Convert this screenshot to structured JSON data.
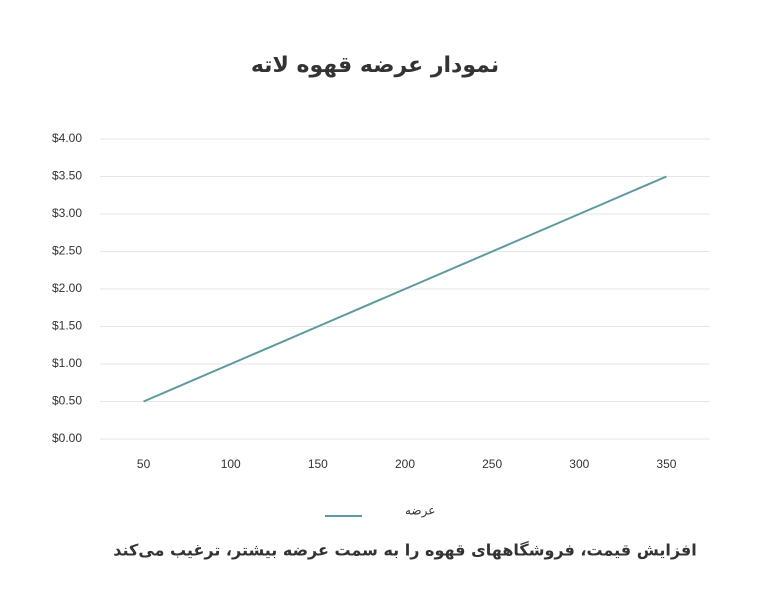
{
  "chart_data": {
    "type": "line",
    "title": "نمودار عرضه قهوه لاته",
    "categories": [
      "50",
      "100",
      "150",
      "200",
      "250",
      "300",
      "350"
    ],
    "series": [
      {
        "name": "عرضه",
        "color": "#5b9aa0",
        "values": [
          0.5,
          1,
          1.5,
          2,
          2.5,
          3,
          3.5
        ]
      }
    ],
    "ylim": [
      0,
      4
    ],
    "yticks": [
      {
        "value": 0,
        "label": "$0.00"
      },
      {
        "value": 0.5,
        "label": "$0.50"
      },
      {
        "value": 1,
        "label": "$1.00"
      },
      {
        "value": 1.5,
        "label": "$1.50"
      },
      {
        "value": 2,
        "label": "$2.00"
      },
      {
        "value": 2.5,
        "label": "$2.50"
      },
      {
        "value": 3,
        "label": "$3.00"
      },
      {
        "value": 3.5,
        "label": "$3.50"
      },
      {
        "value": 4,
        "label": "$4.00"
      }
    ],
    "grid": true,
    "legend": "bottom",
    "caption": "افزایش قیمت، فروشگاههای قهوه را به سمت عرضه بیشتر، ترغیب می‌کند"
  }
}
